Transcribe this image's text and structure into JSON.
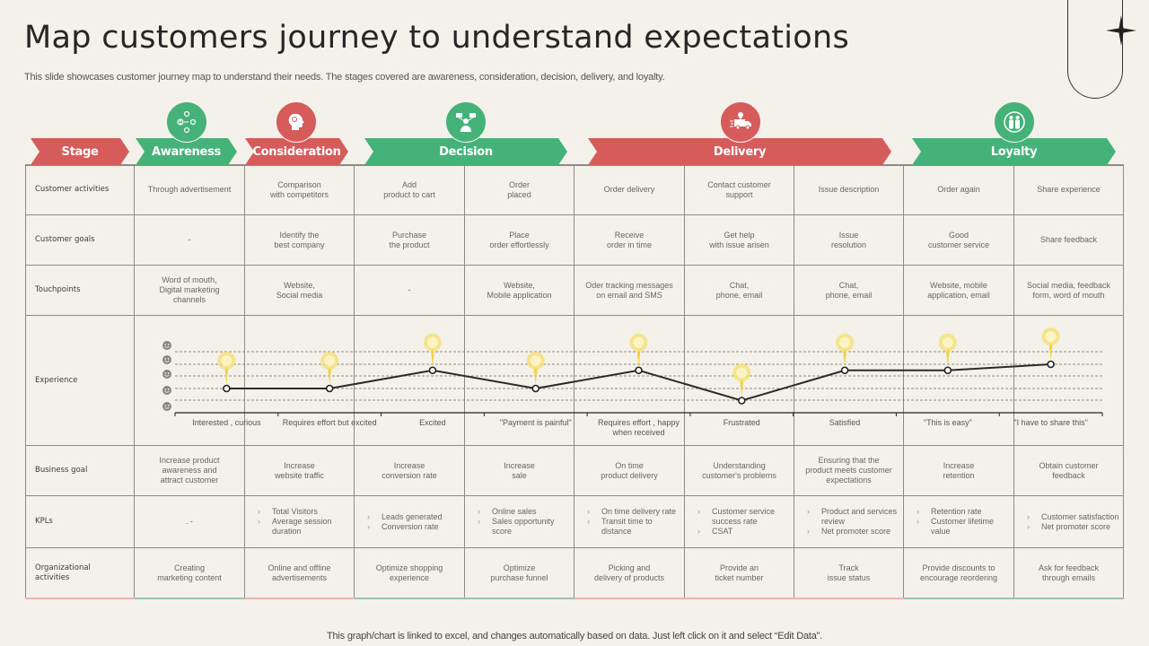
{
  "title": "Map customers journey to understand expectations",
  "subtitle": "This slide showcases customer journey map to understand their needs. The stages covered are awareness, consideration, decision, delivery, and loyalty.",
  "colors": {
    "red": "#d65b5b",
    "green": "#45b27a",
    "background": "#f4f1ea",
    "pin": "#f5df6e",
    "line": "#2a2a2a"
  },
  "stages": [
    {
      "label": "Stage",
      "color": "red",
      "icon": null
    },
    {
      "label": "Awareness",
      "color": "green",
      "icon": "network-people-icon"
    },
    {
      "label": "Consideration",
      "color": "red",
      "icon": "head-idea-icon"
    },
    {
      "label": "Decision",
      "color": "green",
      "icon": "person-choice-icon"
    },
    {
      "label": "Delivery",
      "color": "red",
      "icon": "delivery-truck-icon"
    },
    {
      "label": "Loyalty",
      "color": "green",
      "icon": "people-pair-icon"
    }
  ],
  "rows": {
    "customer_activities": {
      "label": "Customer activities",
      "cells": [
        "Through  advertisement",
        "Comparison\nwith competitors",
        "Add\nproduct to cart",
        "Order\nplaced",
        "Order  delivery",
        "Contact customer\nsupport",
        "Issue description",
        "Order  again",
        "Share experience"
      ]
    },
    "customer_goals": {
      "label": "Customer goals",
      "cells": [
        "-",
        "Identify the\nbest company",
        "Purchase\nthe product",
        "Place\norder effortlessly",
        "Receive\norder in time",
        "Get help\nwith issue arisen",
        "Issue\nresolution",
        "Good\ncustomer service",
        "Share feedback"
      ]
    },
    "touchpoints": {
      "label": "Touchpoints",
      "cells": [
        "Word of mouth,\nDigital marketing\nchannels",
        "Website,\nSocial media",
        "-",
        "Website,\nMobile application",
        "Oder tracking messages\non email and SMS",
        "Chat,\nphone, email",
        "Chat,\nphone, email",
        "Website, mobile\napplication, email",
        "Social media, feedback\nform, word of mouth"
      ]
    },
    "experience": {
      "label": "Experience"
    },
    "business_goal": {
      "label": "Business goal",
      "cells": [
        "Increase product\nawareness  and\nattract customer",
        "Increase\nwebsite traffic",
        "Increase\nconversion rate",
        "Increase\nsale",
        "On time\nproduct delivery",
        "Understanding\ncustomer's problems",
        "Ensuring that the\nproduct meets customer\nexpectations",
        "Increase\nretention",
        "Obtain customer\nfeedback"
      ]
    },
    "kpls": {
      "label": "KPLs",
      "cells": [
        [
          ". -"
        ],
        [
          "Total Visitors",
          "Average session duration"
        ],
        [
          "Leads generated",
          "Conversion rate"
        ],
        [
          "Online sales",
          "Sales opportunity score"
        ],
        [
          "On time delivery rate",
          "Transit time to distance"
        ],
        [
          "Customer service success rate",
          "CSAT"
        ],
        [
          "Product and services review",
          "Net promoter score"
        ],
        [
          "Retention rate",
          "Customer lifetime value"
        ],
        [
          "Customer satisfaction",
          "Net promoter score"
        ]
      ]
    },
    "organizational_activities": {
      "label": "Organizational\nactivities",
      "cells": [
        "Creating\nmarketing content",
        "Online and  offline\nadvertisements",
        "Optimize shopping\nexperience",
        "Optimize\npurchase funnel",
        "Picking and\ndelivery of products",
        "Provide an\nticket number",
        "Track\nissue status",
        "Provide discounts to\nencourage  reordering",
        "Ask for feedback\nthrough emails"
      ]
    }
  },
  "chart_data": {
    "type": "line",
    "title": "Experience",
    "categories": [
      "Interested , curious",
      "Requires effort but excited",
      "Excited",
      "\"Payment is painful\"",
      "Requires effort , happy when received",
      "Frustrated",
      "Satisfied",
      "\"This is easy\"",
      "\"I have to share this\""
    ],
    "values": [
      2,
      2,
      3.5,
      2,
      3.5,
      1,
      3.5,
      3.5,
      4
    ],
    "ylim": [
      0,
      5
    ],
    "y_ticks": [
      "smiley-1",
      "smiley-2",
      "smiley-3",
      "smiley-4",
      "smiley-5"
    ],
    "grid": "dashed horizontal",
    "markers": "yellow map pins above each point"
  },
  "footer": "This graph/chart is linked to excel,  and changes automatically based on data. Just left click on it and select “Edit Data”."
}
